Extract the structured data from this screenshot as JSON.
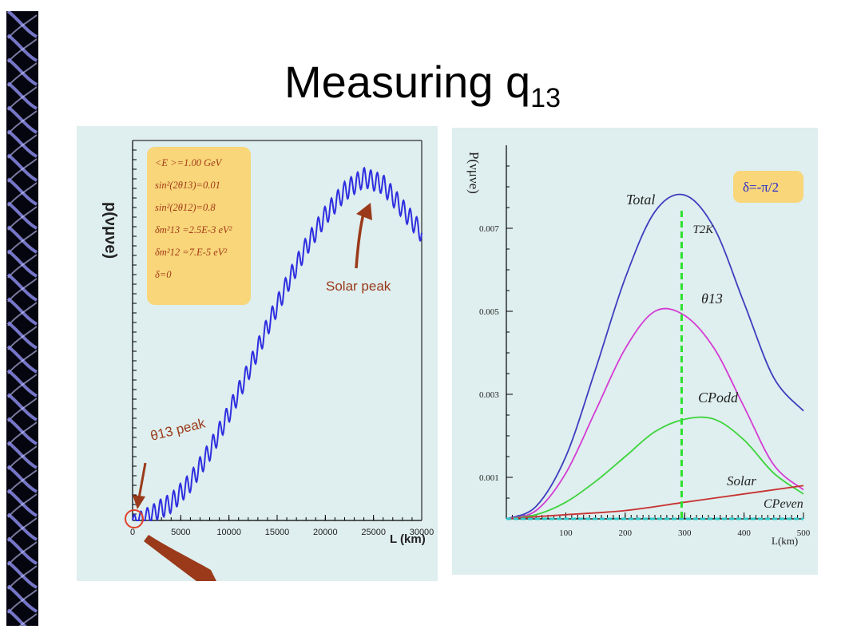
{
  "slide": {
    "title_main": "Measuring q",
    "title_sub": "13"
  },
  "chart_data": [
    {
      "type": "line",
      "xlabel": "L (km)",
      "ylabel": "p(νμνe)",
      "xlim": [
        0,
        30000
      ],
      "x_ticks": [
        "0",
        "5000",
        "10000",
        "15000",
        "20000",
        "25000",
        "30000"
      ],
      "parameters_box": [
        "<E  >=1.00 GeV",
        "sin²(2θ13)=0.01",
        "sin²(2θ12)=0.8",
        "δm²13 =2.5E-3 eV²",
        "δm²12 =7.E-5 eV²",
        "δ=0"
      ],
      "annotations": [
        "Solar peak",
        "θ13 peak"
      ],
      "series": [
        {
          "color": "#2e2ee0",
          "x": [
            0,
            2000,
            4000,
            6000,
            8000,
            10000,
            12000,
            14000,
            16000,
            18000,
            20000,
            22000,
            24000,
            26000,
            28000,
            30000
          ],
          "y": [
            0.0,
            0.02,
            0.05,
            0.11,
            0.2,
            0.31,
            0.43,
            0.56,
            0.68,
            0.79,
            0.88,
            0.95,
            0.99,
            0.97,
            0.9,
            0.83
          ]
        }
      ],
      "grid": false
    },
    {
      "type": "line",
      "xlabel": "L(km)",
      "ylabel": "P(νμνe)",
      "xlim": [
        0,
        500
      ],
      "ylim": [
        0,
        0.009
      ],
      "x_ticks": [
        "100",
        "200",
        "300",
        "400",
        "500"
      ],
      "y_ticks": [
        "0.001",
        "0.003",
        "0.005",
        "0.007"
      ],
      "legend_box": "δ=-π/2",
      "marker_line": {
        "label": "T2K",
        "x": 295
      },
      "series": [
        {
          "name": "Total",
          "color": "#3d3dbf",
          "x": [
            0,
            50,
            100,
            150,
            200,
            250,
            300,
            350,
            400,
            450,
            500
          ],
          "y": [
            0.0,
            0.0003,
            0.0015,
            0.0036,
            0.0058,
            0.0074,
            0.0078,
            0.007,
            0.0052,
            0.0034,
            0.0026
          ]
        },
        {
          "name": "θ13",
          "color": "#d43cd4",
          "x": [
            0,
            50,
            100,
            150,
            200,
            250,
            300,
            350,
            400,
            450,
            500
          ],
          "y": [
            0.0,
            0.0002,
            0.0011,
            0.0026,
            0.0041,
            0.005,
            0.0049,
            0.0041,
            0.0027,
            0.0013,
            0.0007
          ]
        },
        {
          "name": "CPodd",
          "color": "#3cd43c",
          "x": [
            0,
            50,
            100,
            150,
            200,
            250,
            300,
            350,
            400,
            450,
            500
          ],
          "y": [
            0.0,
            0.0001,
            0.0004,
            0.0009,
            0.0015,
            0.0021,
            0.0024,
            0.0024,
            0.0019,
            0.0011,
            0.0006
          ]
        },
        {
          "name": "Solar",
          "color": "#c83232",
          "x": [
            0,
            100,
            200,
            300,
            400,
            500
          ],
          "y": [
            0.0,
            0.0001,
            0.0002,
            0.0004,
            0.0006,
            0.0008
          ]
        },
        {
          "name": "CPeven",
          "color": "#2ec8c8",
          "x": [
            0,
            100,
            200,
            300,
            400,
            500
          ],
          "y": [
            0.0,
            0.0,
            0.0,
            0.0,
            0.0,
            0.0
          ]
        }
      ],
      "grid": false
    }
  ]
}
